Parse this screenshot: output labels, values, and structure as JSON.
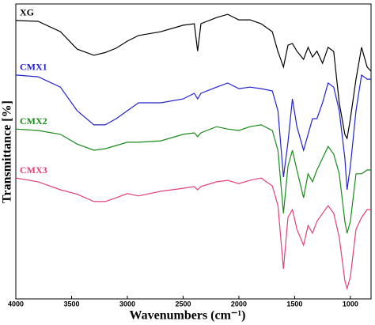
{
  "chart_data": {
    "type": "line",
    "x_label": "Wavenumbers (cm⁻¹)",
    "y_label": "Transmittance [%]",
    "xlim": [
      4000,
      815
    ],
    "ylim": [
      0,
      100
    ],
    "xticks": [
      4000,
      3500,
      3000,
      2500,
      2000,
      1500,
      1000
    ],
    "x": [
      4000,
      3800,
      3600,
      3450,
      3300,
      3200,
      3100,
      3000,
      2900,
      2700,
      2500,
      2400,
      2370,
      2340,
      2200,
      2100,
      2000,
      1900,
      1800,
      1700,
      1650,
      1600,
      1560,
      1520,
      1480,
      1420,
      1380,
      1340,
      1300,
      1250,
      1200,
      1150,
      1100,
      1050,
      1030,
      1000,
      950,
      900,
      850,
      815
    ],
    "series": [
      {
        "name": "XG",
        "color": "#000000",
        "values": [
          94.4,
          94.1,
          90.6,
          84.7,
          82.6,
          83.5,
          85,
          87.4,
          89.3,
          90.6,
          92.8,
          93.3,
          84,
          93.3,
          95.4,
          96.5,
          94.6,
          94.6,
          93.3,
          90.6,
          83.9,
          78.6,
          86,
          86.6,
          84,
          81.2,
          85.3,
          82,
          84,
          79.9,
          85.3,
          83.9,
          66.5,
          55.8,
          54.4,
          61.1,
          74.5,
          85.3,
          78.6,
          77.2
        ]
      },
      {
        "name": "CMX1",
        "color": "#2222cc",
        "values": [
          75.9,
          75.3,
          71.8,
          63.8,
          59,
          59,
          61.1,
          63.8,
          66.5,
          66.5,
          67.8,
          69.7,
          67.8,
          69.7,
          71.8,
          73.2,
          71.3,
          71.8,
          71.3,
          70.5,
          63.8,
          41.3,
          53.1,
          67.8,
          58.4,
          50.4,
          55.8,
          61.1,
          61.1,
          66.5,
          73.2,
          71.8,
          63.8,
          47.7,
          37,
          45,
          63.8,
          75.9,
          74.5,
          74.5
        ]
      },
      {
        "name": "CMX2",
        "color": "#1a8a1a",
        "values": [
          57.6,
          57.1,
          55.8,
          52.5,
          50.4,
          50.9,
          52,
          53.1,
          53.1,
          53.6,
          55.8,
          56.3,
          55,
          56.3,
          58.4,
          57.6,
          57.1,
          58.4,
          59,
          57.1,
          50.4,
          29,
          45,
          50.4,
          43.7,
          34.3,
          42.4,
          39.7,
          43.7,
          47.7,
          51.7,
          49.1,
          42.4,
          26.3,
          22.3,
          26.3,
          42.4,
          42.4,
          43.7,
          43.7
        ]
      },
      {
        "name": "CMX3",
        "color": "#e0407a",
        "values": [
          41,
          39.7,
          37,
          35.5,
          33,
          33,
          34.3,
          35.7,
          34.9,
          36.5,
          37.5,
          38.1,
          37,
          38.1,
          39.7,
          40.2,
          39.1,
          40.2,
          41,
          38.3,
          31.6,
          10.2,
          27.6,
          30.3,
          23.6,
          18.2,
          24.9,
          22.3,
          26.3,
          29,
          31.6,
          29,
          20.9,
          6.2,
          3.5,
          7.5,
          23.6,
          27.6,
          30.3,
          30.3
        ]
      }
    ]
  }
}
